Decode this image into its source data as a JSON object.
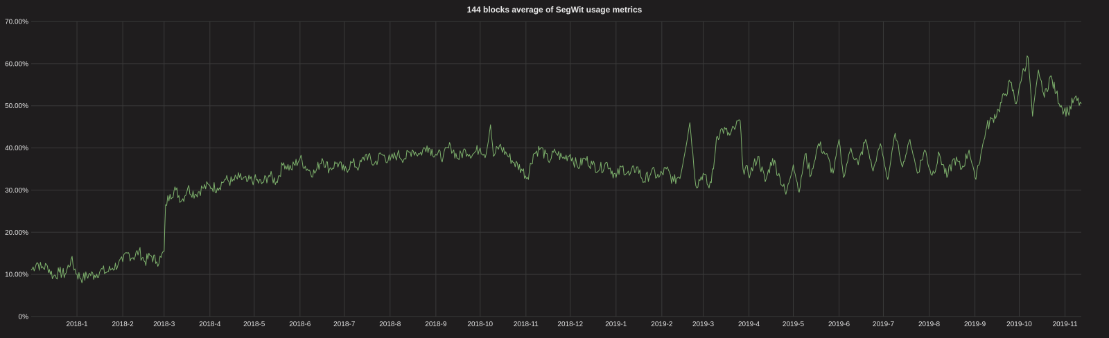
{
  "panel": {
    "title": "144 blocks average of SegWit usage metrics",
    "background": "#1f1d1e",
    "grid_color": "#3a3a3a",
    "series_color": "#7eb26d"
  },
  "chart_data": {
    "type": "line",
    "title": "144 blocks average of SegWit usage metrics",
    "xlabel": "",
    "ylabel": "",
    "x_range": [
      "2017-12-01",
      "2019-11-12"
    ],
    "ylim": [
      0,
      70
    ],
    "y_unit": "%",
    "y_ticks": [
      "0%",
      "10.00%",
      "20.00%",
      "30.00%",
      "40.00%",
      "50.00%",
      "60.00%",
      "70.00%"
    ],
    "y_tick_values": [
      0,
      10,
      20,
      30,
      40,
      50,
      60,
      70
    ],
    "x_ticks": [
      {
        "label": "2018-1",
        "date": "2018-01-01"
      },
      {
        "label": "2018-2",
        "date": "2018-02-01"
      },
      {
        "label": "2018-3",
        "date": "2018-03-01"
      },
      {
        "label": "2018-4",
        "date": "2018-04-01"
      },
      {
        "label": "2018-5",
        "date": "2018-05-01"
      },
      {
        "label": "2018-6",
        "date": "2018-06-01"
      },
      {
        "label": "2018-7",
        "date": "2018-07-01"
      },
      {
        "label": "2018-8",
        "date": "2018-08-01"
      },
      {
        "label": "2018-9",
        "date": "2018-09-01"
      },
      {
        "label": "2018-10",
        "date": "2018-10-01"
      },
      {
        "label": "2018-11",
        "date": "2018-11-01"
      },
      {
        "label": "2018-12",
        "date": "2018-12-01"
      },
      {
        "label": "2019-1",
        "date": "2019-01-01"
      },
      {
        "label": "2019-2",
        "date": "2019-02-01"
      },
      {
        "label": "2019-3",
        "date": "2019-03-01"
      },
      {
        "label": "2019-4",
        "date": "2019-04-01"
      },
      {
        "label": "2019-5",
        "date": "2019-05-01"
      },
      {
        "label": "2019-6",
        "date": "2019-06-01"
      },
      {
        "label": "2019-7",
        "date": "2019-07-01"
      },
      {
        "label": "2019-8",
        "date": "2019-08-01"
      },
      {
        "label": "2019-9",
        "date": "2019-09-01"
      },
      {
        "label": "2019-10",
        "date": "2019-10-01"
      },
      {
        "label": "2019-11",
        "date": "2019-11-01"
      }
    ],
    "grid": true,
    "legend": "none",
    "series": [
      {
        "points": [
          [
            "2017-12-01",
            11.0
          ],
          [
            "2017-12-05",
            12.8
          ],
          [
            "2017-12-08",
            11.5
          ],
          [
            "2017-12-12",
            12.0
          ],
          [
            "2017-12-16",
            9.5
          ],
          [
            "2017-12-20",
            10.5
          ],
          [
            "2017-12-24",
            10.0
          ],
          [
            "2017-12-28",
            13.5
          ],
          [
            "2018-01-01",
            10.0
          ],
          [
            "2018-01-05",
            9.0
          ],
          [
            "2018-01-09",
            10.0
          ],
          [
            "2018-01-13",
            9.8
          ],
          [
            "2018-01-17",
            11.0
          ],
          [
            "2018-01-21",
            10.5
          ],
          [
            "2018-01-25",
            11.5
          ],
          [
            "2018-01-29",
            12.5
          ],
          [
            "2018-02-01",
            13.0
          ],
          [
            "2018-02-04",
            15.0
          ],
          [
            "2018-02-08",
            14.0
          ],
          [
            "2018-02-12",
            15.5
          ],
          [
            "2018-02-16",
            13.0
          ],
          [
            "2018-02-20",
            14.5
          ],
          [
            "2018-02-24",
            13.0
          ],
          [
            "2018-02-27",
            14.0
          ],
          [
            "2018-03-01",
            15.5
          ],
          [
            "2018-03-02",
            26.5
          ],
          [
            "2018-03-05",
            29.0
          ],
          [
            "2018-03-09",
            30.0
          ],
          [
            "2018-03-13",
            27.5
          ],
          [
            "2018-03-17",
            30.5
          ],
          [
            "2018-03-22",
            29.0
          ],
          [
            "2018-03-27",
            30.5
          ],
          [
            "2018-04-01",
            31.0
          ],
          [
            "2018-04-06",
            30.5
          ],
          [
            "2018-04-11",
            32.5
          ],
          [
            "2018-04-16",
            32.0
          ],
          [
            "2018-04-21",
            33.0
          ],
          [
            "2018-04-26",
            32.0
          ],
          [
            "2018-05-01",
            32.5
          ],
          [
            "2018-05-06",
            31.5
          ],
          [
            "2018-05-11",
            33.5
          ],
          [
            "2018-05-16",
            32.0
          ],
          [
            "2018-05-21",
            36.5
          ],
          [
            "2018-05-26",
            35.0
          ],
          [
            "2018-06-01",
            37.5
          ],
          [
            "2018-06-06",
            35.0
          ],
          [
            "2018-06-11",
            34.0
          ],
          [
            "2018-06-16",
            37.5
          ],
          [
            "2018-06-21",
            35.0
          ],
          [
            "2018-06-26",
            36.5
          ],
          [
            "2018-07-01",
            34.5
          ],
          [
            "2018-07-06",
            36.5
          ],
          [
            "2018-07-11",
            35.5
          ],
          [
            "2018-07-16",
            38.5
          ],
          [
            "2018-07-21",
            36.0
          ],
          [
            "2018-07-26",
            38.5
          ],
          [
            "2018-08-01",
            37.0
          ],
          [
            "2018-08-06",
            38.5
          ],
          [
            "2018-08-11",
            37.5
          ],
          [
            "2018-08-16",
            39.5
          ],
          [
            "2018-08-21",
            38.5
          ],
          [
            "2018-08-26",
            40.5
          ],
          [
            "2018-09-01",
            38.5
          ],
          [
            "2018-09-06",
            38.0
          ],
          [
            "2018-09-11",
            40.5
          ],
          [
            "2018-09-16",
            37.5
          ],
          [
            "2018-09-21",
            39.5
          ],
          [
            "2018-09-26",
            38.5
          ],
          [
            "2018-10-01",
            40.0
          ],
          [
            "2018-10-05",
            38.5
          ],
          [
            "2018-10-08",
            45.5
          ],
          [
            "2018-10-10",
            38.0
          ],
          [
            "2018-10-14",
            40.5
          ],
          [
            "2018-10-19",
            38.5
          ],
          [
            "2018-10-24",
            36.5
          ],
          [
            "2018-10-29",
            35.0
          ],
          [
            "2018-11-02",
            33.0
          ],
          [
            "2018-11-06",
            38.5
          ],
          [
            "2018-11-11",
            40.0
          ],
          [
            "2018-11-16",
            37.0
          ],
          [
            "2018-11-21",
            39.0
          ],
          [
            "2018-11-26",
            37.5
          ],
          [
            "2018-12-01",
            38.5
          ],
          [
            "2018-12-06",
            35.5
          ],
          [
            "2018-12-11",
            37.5
          ],
          [
            "2018-12-16",
            36.0
          ],
          [
            "2018-12-21",
            35.0
          ],
          [
            "2018-12-26",
            36.5
          ],
          [
            "2019-01-01",
            33.0
          ],
          [
            "2019-01-05",
            35.5
          ],
          [
            "2019-01-10",
            33.5
          ],
          [
            "2019-01-15",
            35.5
          ],
          [
            "2019-01-20",
            32.0
          ],
          [
            "2019-01-25",
            34.5
          ],
          [
            "2019-01-30",
            33.0
          ],
          [
            "2019-02-04",
            35.0
          ],
          [
            "2019-02-09",
            32.0
          ],
          [
            "2019-02-14",
            34.0
          ],
          [
            "2019-02-20",
            46.0
          ],
          [
            "2019-02-24",
            31.0
          ],
          [
            "2019-03-01",
            34.0
          ],
          [
            "2019-03-05",
            30.5
          ],
          [
            "2019-03-08",
            35.0
          ],
          [
            "2019-03-10",
            42.5
          ],
          [
            "2019-03-14",
            44.5
          ],
          [
            "2019-03-19",
            43.0
          ],
          [
            "2019-03-23",
            45.0
          ],
          [
            "2019-03-26",
            46.5
          ],
          [
            "2019-03-28",
            35.0
          ],
          [
            "2019-04-02",
            34.0
          ],
          [
            "2019-04-07",
            38.0
          ],
          [
            "2019-04-12",
            32.0
          ],
          [
            "2019-04-17",
            37.5
          ],
          [
            "2019-04-22",
            33.0
          ],
          [
            "2019-04-26",
            29.0
          ],
          [
            "2019-05-01",
            36.0
          ],
          [
            "2019-05-05",
            29.5
          ],
          [
            "2019-05-09",
            38.5
          ],
          [
            "2019-05-13",
            33.5
          ],
          [
            "2019-05-18",
            41.0
          ],
          [
            "2019-05-23",
            38.5
          ],
          [
            "2019-05-28",
            34.0
          ],
          [
            "2019-06-01",
            42.0
          ],
          [
            "2019-06-04",
            33.0
          ],
          [
            "2019-06-09",
            40.0
          ],
          [
            "2019-06-14",
            36.0
          ],
          [
            "2019-06-19",
            42.0
          ],
          [
            "2019-06-24",
            34.5
          ],
          [
            "2019-06-29",
            41.0
          ],
          [
            "2019-07-04",
            32.5
          ],
          [
            "2019-07-09",
            43.5
          ],
          [
            "2019-07-14",
            35.5
          ],
          [
            "2019-07-19",
            42.0
          ],
          [
            "2019-07-24",
            34.0
          ],
          [
            "2019-07-29",
            39.5
          ],
          [
            "2019-08-03",
            33.5
          ],
          [
            "2019-08-08",
            38.5
          ],
          [
            "2019-08-13",
            33.0
          ],
          [
            "2019-08-18",
            37.5
          ],
          [
            "2019-08-23",
            35.0
          ],
          [
            "2019-08-28",
            39.5
          ],
          [
            "2019-09-01",
            33.0
          ],
          [
            "2019-09-05",
            38.5
          ],
          [
            "2019-09-09",
            45.0
          ],
          [
            "2019-09-13",
            47.0
          ],
          [
            "2019-09-17",
            49.0
          ],
          [
            "2019-09-21",
            52.5
          ],
          [
            "2019-09-25",
            55.5
          ],
          [
            "2019-09-29",
            50.5
          ],
          [
            "2019-10-03",
            57.5
          ],
          [
            "2019-10-07",
            61.5
          ],
          [
            "2019-10-10",
            47.5
          ],
          [
            "2019-10-14",
            58.5
          ],
          [
            "2019-10-18",
            52.0
          ],
          [
            "2019-10-22",
            57.0
          ],
          [
            "2019-10-26",
            53.0
          ],
          [
            "2019-10-30",
            49.5
          ],
          [
            "2019-11-03",
            48.5
          ],
          [
            "2019-11-07",
            51.5
          ],
          [
            "2019-11-12",
            50.5
          ]
        ]
      }
    ]
  }
}
